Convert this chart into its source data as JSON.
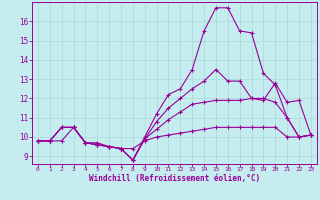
{
  "xlabel": "Windchill (Refroidissement éolien,°C)",
  "bg_color": "#c5ecee",
  "line_color": "#990099",
  "grid_color": "#aad8da",
  "x_ticks": [
    0,
    1,
    2,
    3,
    4,
    5,
    6,
    7,
    8,
    9,
    10,
    11,
    12,
    13,
    14,
    15,
    16,
    17,
    18,
    19,
    20,
    21,
    22,
    23
  ],
  "y_ticks": [
    9,
    10,
    11,
    12,
    13,
    14,
    15,
    16
  ],
  "xlim": [
    -0.5,
    23.5
  ],
  "ylim": [
    8.6,
    17.0
  ],
  "line1_y": [
    9.8,
    9.8,
    9.8,
    10.5,
    9.7,
    9.7,
    9.5,
    9.4,
    9.4,
    9.8,
    10.0,
    10.1,
    10.2,
    10.3,
    10.4,
    10.5,
    10.5,
    10.5,
    10.5,
    10.5,
    10.5,
    10.0,
    10.0,
    10.1
  ],
  "line2_y": [
    9.8,
    9.8,
    10.5,
    10.5,
    9.7,
    9.6,
    9.5,
    9.4,
    8.8,
    9.9,
    10.4,
    10.9,
    11.3,
    11.7,
    11.8,
    11.9,
    11.9,
    11.9,
    12.0,
    12.0,
    11.8,
    11.0,
    10.0,
    10.1
  ],
  "line3_y": [
    9.8,
    9.8,
    10.5,
    10.5,
    9.7,
    9.6,
    9.5,
    9.4,
    8.8,
    9.9,
    10.8,
    11.5,
    12.0,
    12.5,
    12.9,
    13.5,
    12.9,
    12.9,
    12.0,
    11.9,
    12.8,
    11.8,
    11.9,
    10.1
  ],
  "line4_y": [
    9.8,
    9.8,
    10.5,
    10.5,
    9.7,
    9.6,
    9.5,
    9.4,
    8.8,
    10.0,
    11.2,
    12.2,
    12.5,
    13.5,
    15.5,
    16.7,
    16.7,
    15.5,
    15.4,
    13.3,
    12.7,
    11.0,
    10.0,
    10.1
  ]
}
